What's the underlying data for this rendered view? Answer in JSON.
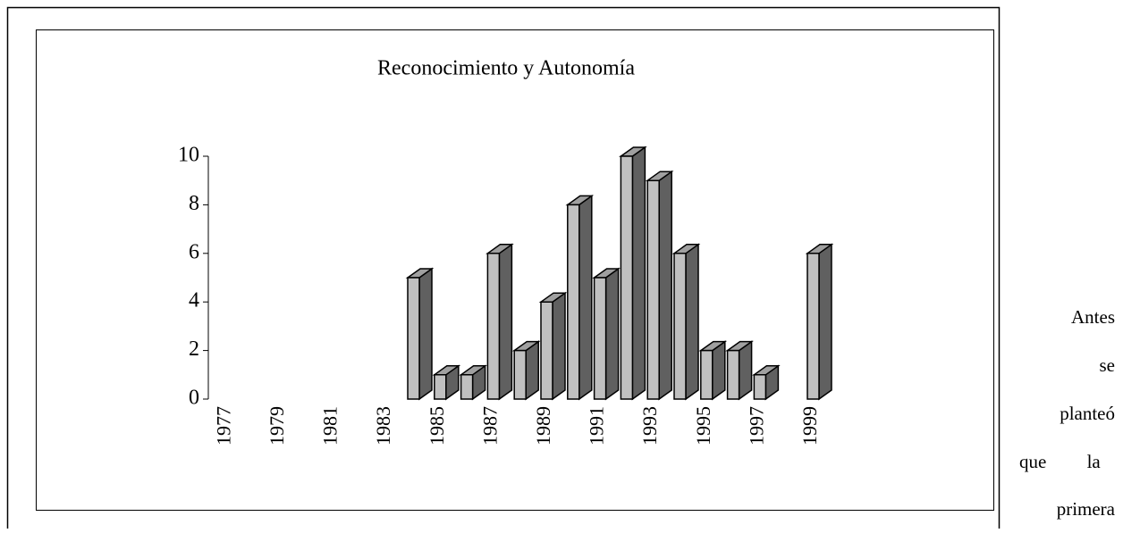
{
  "chart_data": {
    "type": "bar3d",
    "title": "Reconocimiento y Autonomía",
    "categories": [
      "1977",
      null,
      "1979",
      null,
      "1981",
      null,
      "1983",
      null,
      "1985",
      null,
      "1987",
      null,
      "1989",
      null,
      "1991",
      null,
      "1993",
      null,
      "1995",
      null,
      "1997",
      null,
      "1999"
    ],
    "values": [
      null,
      null,
      null,
      null,
      null,
      null,
      null,
      5,
      1,
      1,
      6,
      2,
      4,
      8,
      5,
      10,
      9,
      6,
      2,
      2,
      1,
      null,
      6
    ],
    "color": "#c0c0c0",
    "side_color": "#606060",
    "ylim": [
      0,
      10
    ],
    "yticks": [
      0,
      2,
      4,
      6,
      8,
      10
    ],
    "grid": false
  },
  "side_text": [
    "Antes",
    "se",
    "planteó",
    "que la",
    "primera"
  ]
}
